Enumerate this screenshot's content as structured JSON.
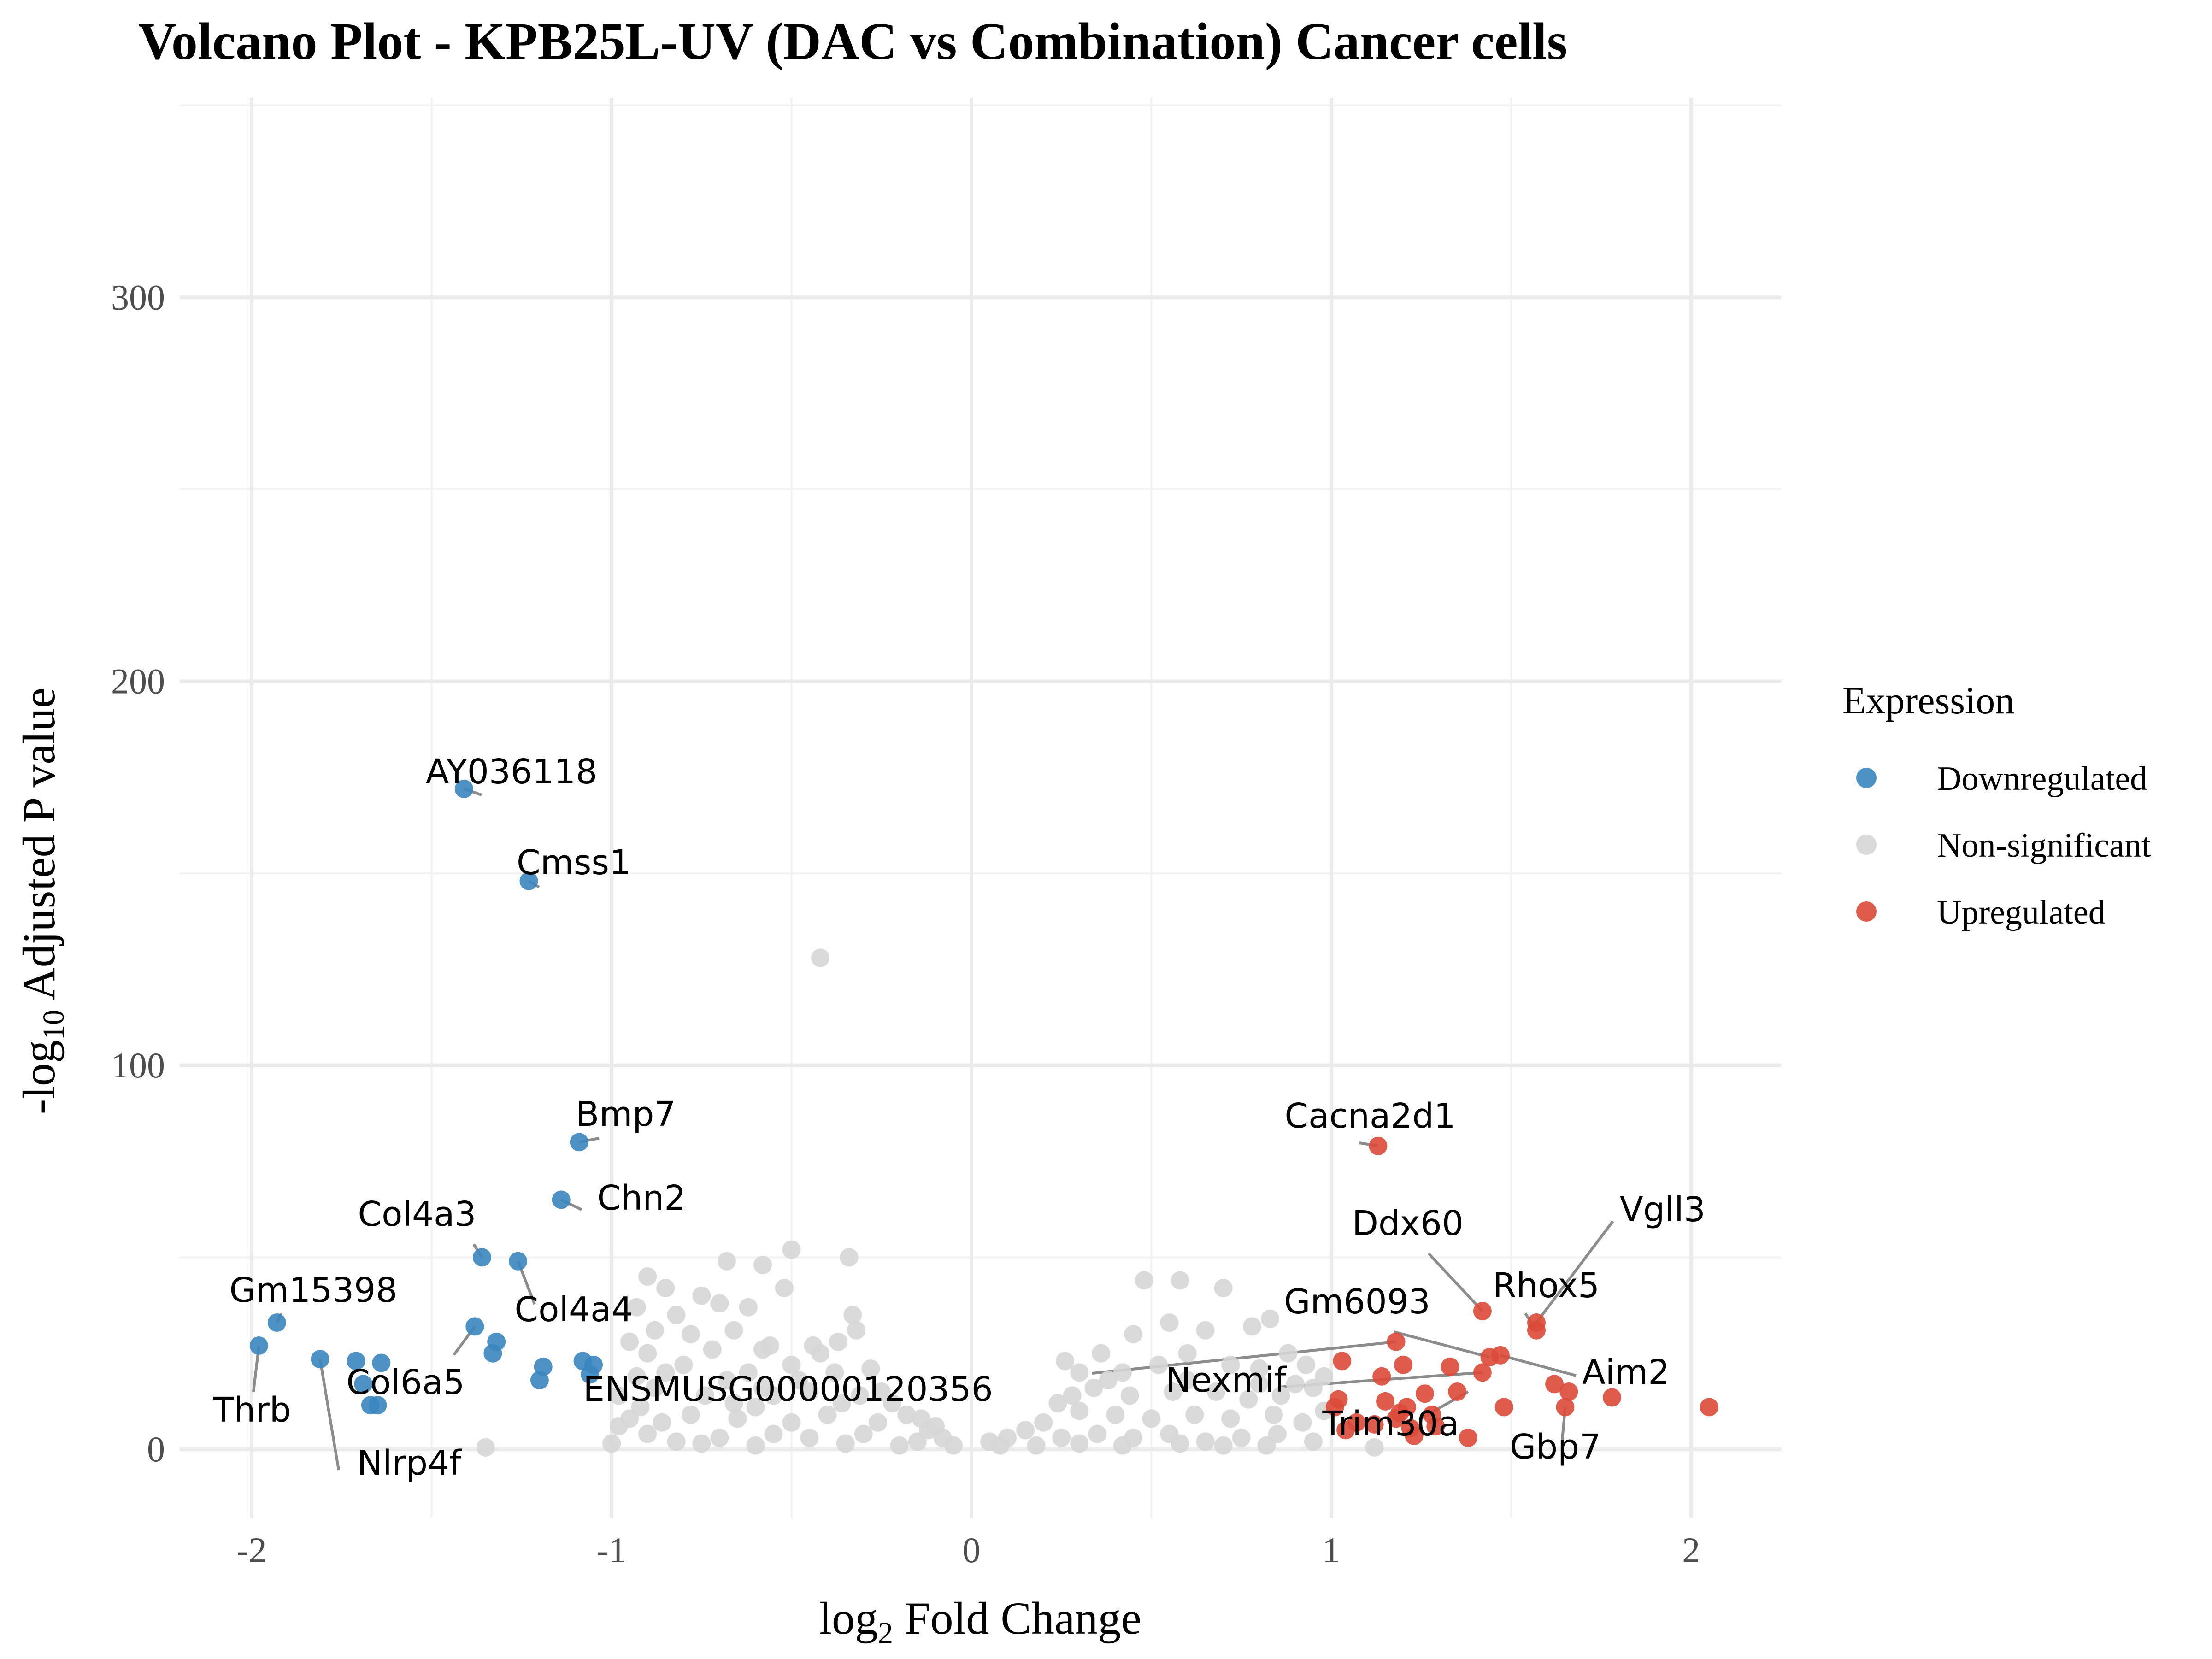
{
  "chart_data": {
    "type": "scatter",
    "title": "Volcano Plot - KPB25L-UV (DAC vs Combination) Cancer cells",
    "xlabel": "log2 Fold Change",
    "ylabel": "-log10 Adjusted P value",
    "xlim": [
      -2.2,
      2.25
    ],
    "ylim": [
      -18,
      352
    ],
    "x_ticks": [
      -2,
      -1,
      0,
      1,
      2
    ],
    "x_tick_labels": [
      "-2",
      "-1",
      "0",
      "1",
      "2"
    ],
    "y_ticks": [
      0,
      100,
      200,
      300
    ],
    "y_tick_labels": [
      "0",
      "100",
      "200",
      "300"
    ],
    "grid": true,
    "legend": {
      "title": "Expression",
      "placement": "right",
      "entries": [
        {
          "name": "Downregulated",
          "color": "#3b86bf"
        },
        {
          "name": "Non-significant",
          "color": "#d6d6d6"
        },
        {
          "name": "Upregulated",
          "color": "#db4a3a"
        }
      ]
    },
    "series": [
      {
        "name": "Downregulated",
        "color": "#3b86bf",
        "points": [
          [
            -1.41,
            172
          ],
          [
            -1.23,
            148
          ],
          [
            -1.09,
            80
          ],
          [
            -1.14,
            65
          ],
          [
            -1.36,
            50
          ],
          [
            -1.26,
            49
          ],
          [
            -1.93,
            33
          ],
          [
            -1.98,
            27
          ],
          [
            -1.38,
            32
          ],
          [
            -1.32,
            28
          ],
          [
            -1.33,
            25
          ],
          [
            -1.81,
            23.5
          ],
          [
            -1.71,
            23
          ],
          [
            -1.64,
            22.5
          ],
          [
            -1.69,
            17
          ],
          [
            -1.67,
            11.5
          ],
          [
            -1.65,
            11.5
          ],
          [
            -1.19,
            21.5
          ],
          [
            -1.2,
            18
          ],
          [
            -1.08,
            23
          ],
          [
            -1.05,
            22
          ],
          [
            -1.06,
            19.5
          ]
        ]
      },
      {
        "name": "Upregulated",
        "color": "#db4a3a",
        "points": [
          [
            1.13,
            79
          ],
          [
            1.42,
            36
          ],
          [
            1.57,
            33
          ],
          [
            1.57,
            31
          ],
          [
            1.18,
            28
          ],
          [
            1.47,
            24.5
          ],
          [
            1.44,
            24
          ],
          [
            1.03,
            23
          ],
          [
            1.2,
            22
          ],
          [
            1.33,
            21.5
          ],
          [
            1.42,
            20
          ],
          [
            1.14,
            19
          ],
          [
            1.62,
            17
          ],
          [
            1.66,
            15
          ],
          [
            1.78,
            13.5
          ],
          [
            2.05,
            11
          ],
          [
            1.65,
            11
          ],
          [
            1.48,
            11
          ],
          [
            1.26,
            14.5
          ],
          [
            1.35,
            15
          ],
          [
            1.02,
            13
          ],
          [
            1.01,
            11
          ],
          [
            1.15,
            12.5
          ],
          [
            1.21,
            11
          ],
          [
            1.07,
            7
          ],
          [
            1.12,
            6.5
          ],
          [
            1.18,
            8
          ],
          [
            1.22,
            5.5
          ],
          [
            1.19,
            9.5
          ],
          [
            1.28,
            9
          ],
          [
            1.38,
            3
          ],
          [
            1.23,
            3.5
          ],
          [
            1.29,
            6
          ],
          [
            1.04,
            5
          ]
        ]
      },
      {
        "name": "Non-significant",
        "color": "#d6d6d6",
        "points": [
          [
            -0.42,
            128
          ],
          [
            -0.5,
            52
          ],
          [
            -0.58,
            48
          ],
          [
            -0.34,
            50
          ],
          [
            -0.68,
            49
          ],
          [
            -0.52,
            42
          ],
          [
            -0.85,
            42
          ],
          [
            -0.9,
            45
          ],
          [
            -0.93,
            37
          ],
          [
            -0.7,
            38
          ],
          [
            -0.62,
            37
          ],
          [
            -0.75,
            40
          ],
          [
            -0.82,
            35
          ],
          [
            -0.78,
            30
          ],
          [
            -0.88,
            31
          ],
          [
            -0.66,
            31
          ],
          [
            -0.56,
            27
          ],
          [
            -0.44,
            27
          ],
          [
            -0.32,
            31
          ],
          [
            -0.37,
            28
          ],
          [
            -0.58,
            26
          ],
          [
            -0.72,
            26
          ],
          [
            -0.95,
            28
          ],
          [
            -0.9,
            25
          ],
          [
            -0.33,
            35
          ],
          [
            -0.42,
            25
          ],
          [
            -0.5,
            22
          ],
          [
            -0.62,
            20
          ],
          [
            -0.8,
            22
          ],
          [
            -0.68,
            18
          ],
          [
            -0.38,
            20
          ],
          [
            -0.28,
            21
          ],
          [
            -0.45,
            15
          ],
          [
            -0.55,
            14
          ],
          [
            -0.74,
            14
          ],
          [
            -0.88,
            16
          ],
          [
            -0.98,
            14
          ],
          [
            -0.92,
            11
          ],
          [
            -0.6,
            11
          ],
          [
            -0.31,
            14
          ],
          [
            -0.22,
            12
          ],
          [
            -0.18,
            9
          ],
          [
            -0.26,
            7
          ],
          [
            -0.4,
            9
          ],
          [
            -0.5,
            7
          ],
          [
            -0.65,
            8
          ],
          [
            -0.78,
            9
          ],
          [
            -0.86,
            7
          ],
          [
            -0.95,
            8
          ],
          [
            -0.12,
            5
          ],
          [
            -0.08,
            3
          ],
          [
            -0.15,
            2
          ],
          [
            -0.3,
            4
          ],
          [
            -0.45,
            3
          ],
          [
            -0.55,
            4
          ],
          [
            -0.7,
            3
          ],
          [
            -0.82,
            2
          ],
          [
            -0.9,
            4
          ],
          [
            -1.0,
            1.5
          ],
          [
            -0.05,
            1
          ],
          [
            -0.2,
            1
          ],
          [
            -0.35,
            1.5
          ],
          [
            -0.6,
            1
          ],
          [
            -0.75,
            1.5
          ],
          [
            -1.35,
            0.5
          ],
          [
            -0.98,
            6
          ],
          [
            -0.93,
            19
          ],
          [
            -0.85,
            20
          ],
          [
            -0.48,
            18
          ],
          [
            -0.58,
            16
          ],
          [
            -0.66,
            12
          ],
          [
            -0.36,
            12
          ],
          [
            -0.25,
            15
          ],
          [
            -0.14,
            8
          ],
          [
            -0.1,
            6
          ],
          [
            0.48,
            44
          ],
          [
            0.58,
            44
          ],
          [
            0.7,
            42
          ],
          [
            0.83,
            34
          ],
          [
            0.78,
            32
          ],
          [
            0.55,
            33
          ],
          [
            0.65,
            31
          ],
          [
            0.45,
            30
          ],
          [
            0.36,
            25
          ],
          [
            0.26,
            23
          ],
          [
            0.3,
            20
          ],
          [
            0.42,
            20
          ],
          [
            0.52,
            22
          ],
          [
            0.6,
            25
          ],
          [
            0.72,
            22
          ],
          [
            0.8,
            21
          ],
          [
            0.88,
            25
          ],
          [
            0.93,
            22
          ],
          [
            0.98,
            19
          ],
          [
            0.34,
            16
          ],
          [
            0.44,
            14
          ],
          [
            0.56,
            15
          ],
          [
            0.68,
            15
          ],
          [
            0.77,
            13
          ],
          [
            0.86,
            14
          ],
          [
            0.95,
            16
          ],
          [
            0.24,
            12
          ],
          [
            0.3,
            10
          ],
          [
            0.4,
            9
          ],
          [
            0.5,
            8
          ],
          [
            0.62,
            9
          ],
          [
            0.72,
            8
          ],
          [
            0.84,
            9
          ],
          [
            0.92,
            7
          ],
          [
            0.98,
            10
          ],
          [
            0.15,
            5
          ],
          [
            0.2,
            7
          ],
          [
            0.1,
            3
          ],
          [
            0.05,
            2
          ],
          [
            0.25,
            3
          ],
          [
            0.35,
            4
          ],
          [
            0.45,
            3
          ],
          [
            0.55,
            4
          ],
          [
            0.65,
            2
          ],
          [
            0.75,
            3
          ],
          [
            0.85,
            4
          ],
          [
            0.95,
            2
          ],
          [
            0.08,
            1
          ],
          [
            0.18,
            1
          ],
          [
            0.3,
            1.5
          ],
          [
            0.42,
            1
          ],
          [
            0.58,
            1.5
          ],
          [
            0.7,
            1
          ],
          [
            0.82,
            1
          ],
          [
            1.12,
            0.5
          ],
          [
            0.9,
            17
          ],
          [
            0.8,
            17
          ],
          [
            0.6,
            18
          ],
          [
            0.38,
            18
          ],
          [
            0.28,
            14
          ]
        ]
      }
    ],
    "annotations": [
      {
        "text": "AY036118",
        "x": -1.41,
        "y": 172
      },
      {
        "text": "Cmss1",
        "x": -1.23,
        "y": 148
      },
      {
        "text": "Bmp7",
        "x": -1.09,
        "y": 80
      },
      {
        "text": "Chn2",
        "x": -1.14,
        "y": 65
      },
      {
        "text": "Col4a3",
        "x": -1.36,
        "y": 50
      },
      {
        "text": "Col4a4",
        "x": -1.26,
        "y": 49
      },
      {
        "text": "Gm15398",
        "x": -1.93,
        "y": 33
      },
      {
        "text": "Thrb",
        "x": -1.98,
        "y": 27
      },
      {
        "text": "Col6a5",
        "x": -1.38,
        "y": 32
      },
      {
        "text": "Nlrp4f",
        "x": -1.81,
        "y": 23.5
      },
      {
        "text": "ENSMUSG00000120356",
        "x": 1.18,
        "y": 28
      },
      {
        "text": "Cacna2d1",
        "x": 1.13,
        "y": 79
      },
      {
        "text": "Ddx60",
        "x": 1.42,
        "y": 36
      },
      {
        "text": "Vgll3",
        "x": 1.57,
        "y": 33
      },
      {
        "text": "Rhox5",
        "x": 1.57,
        "y": 31
      },
      {
        "text": "Gm6093",
        "x": 1.44,
        "y": 24
      },
      {
        "text": "Aim2",
        "x": 1.47,
        "y": 24.5
      },
      {
        "text": "Nexmif",
        "x": 1.42,
        "y": 20
      },
      {
        "text": "Trim30a",
        "x": 1.38,
        "y": 15
      },
      {
        "text": "Gbp7",
        "x": 1.65,
        "y": 11
      }
    ]
  }
}
